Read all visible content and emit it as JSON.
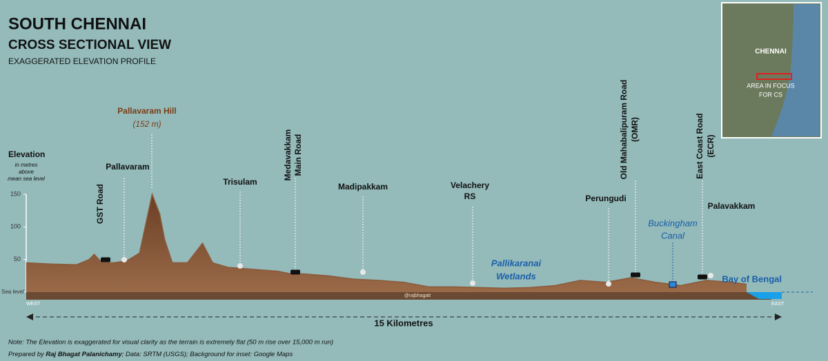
{
  "chart_data": {
    "type": "area",
    "title": "SOUTH CHENNAI",
    "subtitle": "CROSS SECTIONAL VIEW",
    "subsubtitle": "EXAGGERATED ELEVATION PROFILE",
    "y_label": "Elevation",
    "y_label_note": [
      "in metres",
      "above",
      "mean sea level"
    ],
    "x_label": "15 Kilometres",
    "x_start_label": "WEST",
    "x_end_label": "EAST",
    "xlim": [
      0,
      15
    ],
    "ylim": [
      0,
      150
    ],
    "yticks": [
      {
        "value": 0,
        "label": "Sea level"
      },
      50,
      100,
      150
    ],
    "color": "#8a5a3a",
    "x": [
      0,
      0.5,
      1.0,
      1.25,
      1.35,
      1.5,
      1.75,
      2.0,
      2.25,
      2.5,
      2.65,
      2.75,
      2.9,
      3.2,
      3.5,
      3.7,
      4.0,
      4.5,
      5.0,
      5.25,
      5.5,
      6.0,
      6.5,
      7.0,
      7.5,
      8.0,
      8.5,
      9.0,
      9.5,
      10.0,
      10.5,
      11.0,
      11.5,
      12.0,
      12.5,
      13.0,
      13.5,
      14.0,
      14.3
    ],
    "values": [
      45,
      43,
      42,
      50,
      58,
      45,
      45,
      48,
      60,
      150,
      120,
      80,
      45,
      45,
      75,
      45,
      38,
      35,
      32,
      28,
      28,
      25,
      20,
      18,
      15,
      8,
      8,
      7,
      6,
      7,
      10,
      18,
      15,
      22,
      15,
      10,
      18,
      15,
      12
    ],
    "annotations": [
      {
        "lines": [
          "GST Road"
        ]
      },
      {
        "lines": [
          "Pallavaram"
        ]
      },
      {
        "lines": [
          "Pallavaram Hill",
          "(152 m)"
        ]
      },
      {
        "lines": [
          "Trisulam"
        ]
      },
      {
        "lines": [
          "Medavakkam",
          "Main Road"
        ]
      },
      {
        "lines": [
          "Madipakkam"
        ]
      },
      {
        "lines": [
          "Velachery",
          "RS"
        ]
      },
      {
        "lines": [
          "Pallikaranai",
          "Wetlands"
        ]
      },
      {
        "lines": [
          "Perungudi"
        ]
      },
      {
        "lines": [
          "Old Mahabalipuram Road",
          "(OMR)"
        ]
      },
      {
        "lines": [
          "Buckingham",
          "Canal"
        ]
      },
      {
        "lines": [
          "East Coast Road",
          "(ECR)"
        ]
      },
      {
        "lines": [
          "Palavakkam"
        ]
      },
      {
        "lines": [
          "Bay of Bengal"
        ]
      },
      {
        "lines": [
          "@rajbhagatt"
        ]
      }
    ],
    "inset": {
      "city": "CHENNAI",
      "focus": [
        "AREA IN FOCUS",
        "FOR CS"
      ]
    },
    "note": "Note: The Elevation is exaggerated for visual clarity as the terrain is extremely flat (50 m rise over 15,000 m run)",
    "credit": [
      "Prepared by ",
      "Raj Bhagat Palanichamy",
      "; Data: SRTM (USGS); Background for inset: Google Maps"
    ]
  }
}
